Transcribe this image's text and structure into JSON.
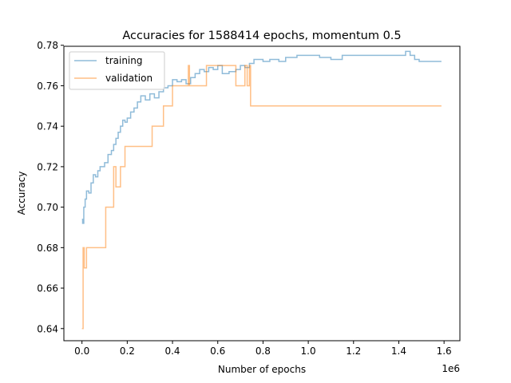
{
  "chart_data": {
    "type": "line",
    "title": "Accuracies for 1588414 epochs, momentum 0.5",
    "xlabel": "Number of epochs",
    "ylabel": "Accuracy",
    "x_offset_label": "1e6",
    "xlim": [
      -80000,
      1670000
    ],
    "ylim": [
      0.634,
      0.7795
    ],
    "x_ticks": [
      0,
      200000,
      400000,
      600000,
      800000,
      1000000,
      1200000,
      1400000,
      1600000
    ],
    "x_tick_labels": [
      "0.0",
      "0.2",
      "0.4",
      "0.6",
      "0.8",
      "1.0",
      "1.2",
      "1.4",
      "1.6"
    ],
    "y_ticks": [
      0.64,
      0.66,
      0.68,
      0.7,
      0.72,
      0.74,
      0.76,
      0.78
    ],
    "y_tick_labels": [
      "0.64",
      "0.66",
      "0.68",
      "0.70",
      "0.72",
      "0.74",
      "0.76",
      "0.78"
    ],
    "grid": false,
    "legend_position": "top-left",
    "colors": {
      "training": "#1f77b4",
      "validation": "#ff7f0e"
    },
    "series": [
      {
        "name": "training",
        "color": "#1f77b4",
        "x": [
          0,
          3000,
          8000,
          14000,
          20000,
          30000,
          40000,
          50000,
          60000,
          70000,
          80000,
          100000,
          115000,
          130000,
          140000,
          150000,
          160000,
          170000,
          180000,
          190000,
          200000,
          215000,
          230000,
          245000,
          260000,
          280000,
          300000,
          320000,
          340000,
          360000,
          380000,
          400000,
          420000,
          440000,
          460000,
          480000,
          500000,
          520000,
          540000,
          560000,
          580000,
          600000,
          620000,
          650000,
          680000,
          700000,
          720000,
          740000,
          760000,
          800000,
          830000,
          870000,
          900000,
          950000,
          1000000,
          1050000,
          1100000,
          1150000,
          1200000,
          1250000,
          1300000,
          1350000,
          1400000,
          1430000,
          1450000,
          1470000,
          1490000,
          1500000,
          1550000,
          1588414
        ],
        "y": [
          0.694,
          0.692,
          0.7,
          0.704,
          0.708,
          0.707,
          0.712,
          0.716,
          0.715,
          0.718,
          0.72,
          0.722,
          0.726,
          0.728,
          0.731,
          0.734,
          0.737,
          0.74,
          0.743,
          0.742,
          0.744,
          0.747,
          0.749,
          0.752,
          0.755,
          0.753,
          0.756,
          0.754,
          0.757,
          0.759,
          0.76,
          0.763,
          0.762,
          0.763,
          0.761,
          0.764,
          0.766,
          0.768,
          0.767,
          0.769,
          0.768,
          0.77,
          0.766,
          0.767,
          0.768,
          0.77,
          0.769,
          0.771,
          0.773,
          0.772,
          0.773,
          0.772,
          0.774,
          0.775,
          0.775,
          0.774,
          0.773,
          0.775,
          0.775,
          0.775,
          0.775,
          0.775,
          0.775,
          0.777,
          0.775,
          0.773,
          0.772,
          0.772,
          0.772,
          0.772
        ]
      },
      {
        "name": "validation",
        "color": "#ff7f0e",
        "x": [
          0,
          2000,
          5000,
          10000,
          15000,
          20000,
          100000,
          105000,
          130000,
          140000,
          150000,
          170000,
          190000,
          310000,
          360000,
          400000,
          470000,
          475000,
          490000,
          500000,
          550000,
          560000,
          680000,
          720000,
          730000,
          740000,
          745000,
          1588414
        ],
        "y": [
          0.64,
          0.64,
          0.68,
          0.67,
          0.67,
          0.68,
          0.68,
          0.7,
          0.7,
          0.72,
          0.71,
          0.72,
          0.73,
          0.74,
          0.75,
          0.76,
          0.77,
          0.76,
          0.76,
          0.76,
          0.77,
          0.77,
          0.76,
          0.77,
          0.76,
          0.77,
          0.75,
          0.75
        ]
      }
    ]
  }
}
